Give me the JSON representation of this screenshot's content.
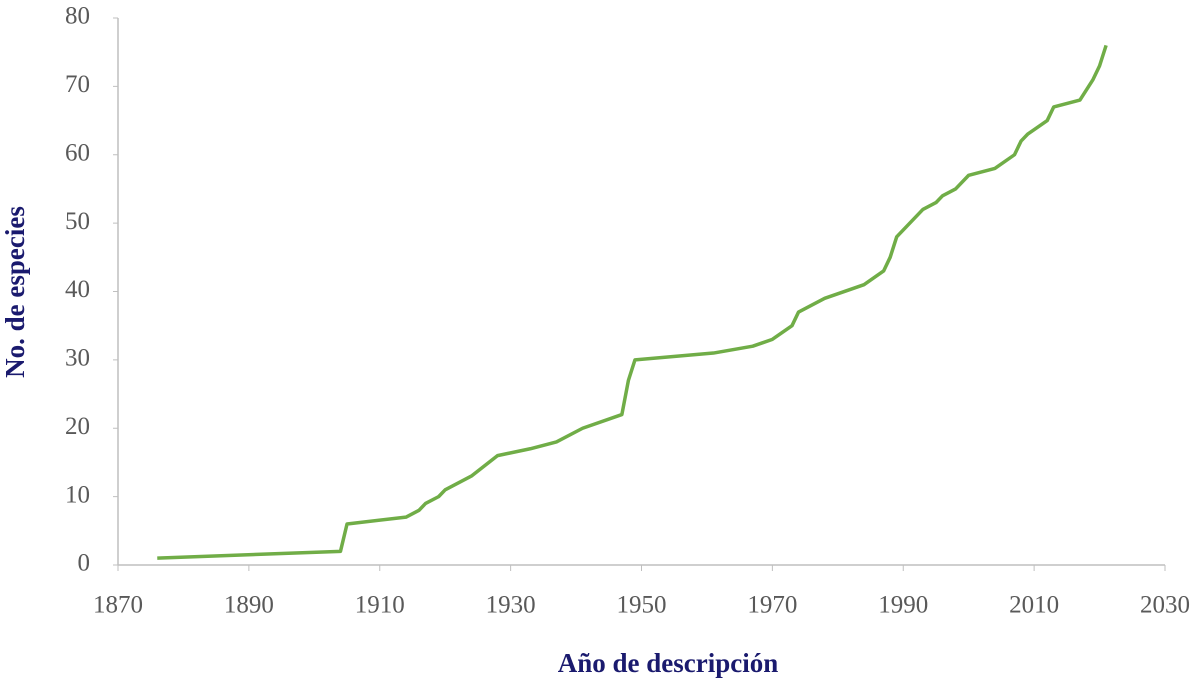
{
  "chart_data": {
    "type": "line",
    "xlabel": "Año de descripción",
    "ylabel": "No. de especies",
    "x": [
      1876,
      1904,
      1905,
      1914,
      1916,
      1917,
      1919,
      1920,
      1924,
      1928,
      1933,
      1937,
      1941,
      1947,
      1948,
      1949,
      1961,
      1967,
      1970,
      1973,
      1974,
      1978,
      1984,
      1987,
      1988,
      1989,
      1993,
      1995,
      1996,
      1998,
      2000,
      2004,
      2007,
      2008,
      2009,
      2012,
      2013,
      2017,
      2019,
      2020,
      2021
    ],
    "series": [
      {
        "color": "#70ad47",
        "values": [
          1,
          2,
          6,
          7,
          8,
          9,
          10,
          11,
          13,
          16,
          17,
          18,
          20,
          22,
          27,
          30,
          31,
          32,
          33,
          35,
          37,
          39,
          41,
          43,
          45,
          48,
          52,
          53,
          54,
          55,
          57,
          58,
          60,
          62,
          63,
          65,
          67,
          68,
          71,
          73,
          76
        ]
      }
    ],
    "xlim": [
      1870,
      2030
    ],
    "xticks": [
      1870,
      1890,
      1910,
      1930,
      1950,
      1970,
      1990,
      2010,
      2030
    ],
    "ylim": [
      0,
      80
    ],
    "yticks": [
      0,
      10,
      20,
      30,
      40,
      50,
      60,
      70,
      80
    ]
  }
}
